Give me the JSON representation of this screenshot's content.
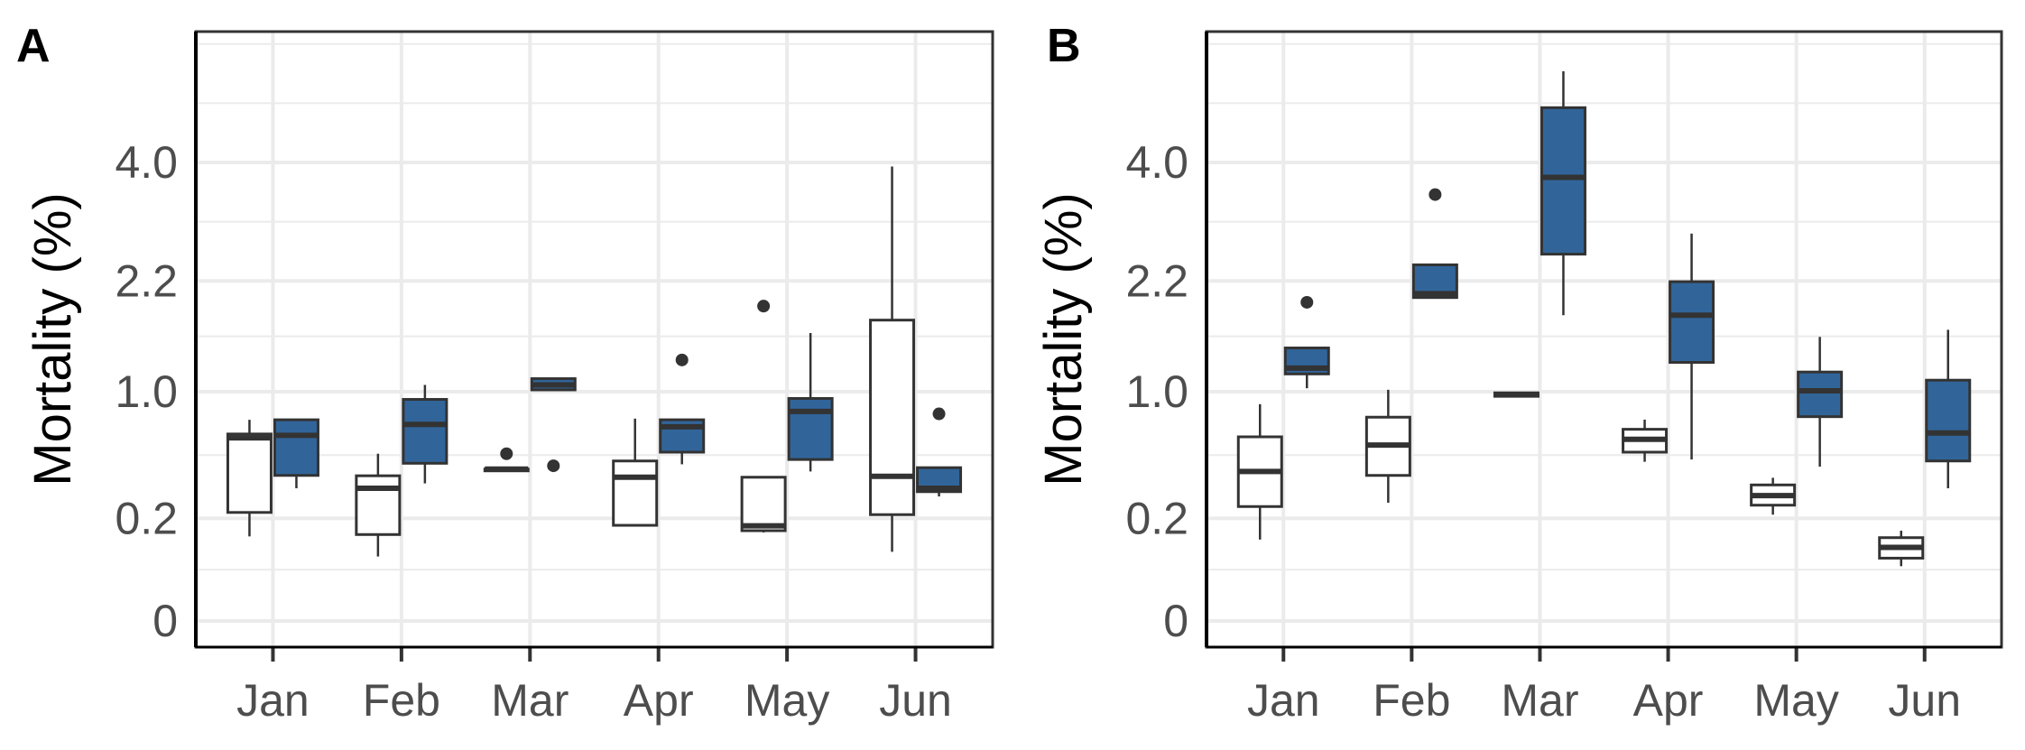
{
  "chart_data": [
    {
      "type": "boxplot",
      "panel_tag": "A",
      "ylabel": "Mortality (%)",
      "xlabel": "",
      "y_scale": "sqrt",
      "ylim": [
        0,
        6.6
      ],
      "y_ticks": [
        "0",
        "0.2",
        "1.0",
        "2.2",
        "4.0"
      ],
      "y_tick_values": [
        0,
        0.2,
        1.0,
        2.2,
        4.0
      ],
      "grid": true,
      "categories": [
        "Jan",
        "Feb",
        "Mar",
        "Apr",
        "May",
        "Jun"
      ],
      "series_fills": [
        "#ffffff",
        "#31659a"
      ],
      "series": [
        {
          "boxes": [
            {
              "min": 0.136,
              "q1": 0.224,
              "median": 0.638,
              "q3": 0.665,
              "max": 0.77,
              "outliers": []
            },
            {
              "min": 0.079,
              "q1": 0.142,
              "median": 0.335,
              "q3": 0.401,
              "max": 0.532,
              "outliers": []
            },
            {
              "min": 0.439,
              "q1": 0.439,
              "median": 0.439,
              "q3": 0.439,
              "max": 0.439,
              "outliers": [
                0.532
              ]
            },
            {
              "min": 0.174,
              "q1": 0.174,
              "median": 0.393,
              "q3": 0.487,
              "max": 0.779,
              "outliers": []
            },
            {
              "min": 0.149,
              "q1": 0.155,
              "median": 0.172,
              "q3": 0.393,
              "max": 0.393,
              "outliers": [
                1.886
              ]
            },
            {
              "min": 0.091,
              "q1": 0.215,
              "median": 0.398,
              "q3": 1.722,
              "max": 3.93,
              "outliers": []
            }
          ]
        },
        {
          "boxes": [
            {
              "min": 0.335,
              "q1": 0.403,
              "median": 0.655,
              "q3": 0.77,
              "max": 0.77,
              "outliers": []
            },
            {
              "min": 0.36,
              "q1": 0.473,
              "median": 0.735,
              "q3": 0.934,
              "max": 1.06,
              "outliers": []
            },
            {
              "min": 1.016,
              "q1": 1.016,
              "median": 1.06,
              "q3": 1.117,
              "max": 1.117,
              "outliers": [
                0.458
              ]
            },
            {
              "min": 0.467,
              "q1": 0.542,
              "median": 0.717,
              "q3": 0.77,
              "max": 0.77,
              "outliers": [
                1.296
              ]
            },
            {
              "min": 0.425,
              "q1": 0.496,
              "median": 0.835,
              "q3": 0.942,
              "max": 1.577,
              "outliers": []
            },
            {
              "min": 0.295,
              "q1": 0.318,
              "median": 0.335,
              "q3": 0.447,
              "max": 0.447,
              "outliers": [
                0.816
              ]
            }
          ]
        }
      ]
    },
    {
      "type": "boxplot",
      "panel_tag": "B",
      "ylabel": "Mortality (%)",
      "xlabel": "",
      "y_scale": "sqrt",
      "ylim": [
        0,
        6.6
      ],
      "y_ticks": [
        "0",
        "0.2",
        "1.0",
        "2.2",
        "4.0"
      ],
      "y_tick_values": [
        0,
        0.2,
        1.0,
        2.2,
        4.0
      ],
      "grid": true,
      "categories": [
        "Jan",
        "Feb",
        "Mar",
        "Apr",
        "May",
        "Jun"
      ],
      "series_fills": [
        "#ffffff",
        "#31659a"
      ],
      "series": [
        {
          "boxes": [
            {
              "min": 0.126,
              "q1": 0.249,
              "median": 0.425,
              "q3": 0.645,
              "max": 0.894,
              "outliers": []
            },
            {
              "min": 0.266,
              "q1": 0.403,
              "median": 0.589,
              "q3": 0.79,
              "max": 1.017,
              "outliers": []
            },
            {
              "min": 0.96,
              "q1": 0.96,
              "median": 0.975,
              "q3": 0.99,
              "max": 0.99,
              "outliers": []
            },
            {
              "min": 0.482,
              "q1": 0.542,
              "median": 0.628,
              "q3": 0.699,
              "max": 0.771,
              "outliers": []
            },
            {
              "min": 0.215,
              "q1": 0.255,
              "median": 0.299,
              "q3": 0.352,
              "max": 0.39,
              "outliers": []
            },
            {
              "min": 0.057,
              "q1": 0.075,
              "median": 0.103,
              "q3": 0.132,
              "max": 0.155,
              "outliers": []
            }
          ]
        },
        {
          "boxes": [
            {
              "min": 1.03,
              "q1": 1.161,
              "median": 1.216,
              "q3": 1.418,
              "max": 1.418,
              "outliers": [
                1.932
              ]
            },
            {
              "min": 1.99,
              "q1": 1.99,
              "median": 2.038,
              "q3": 2.413,
              "max": 2.413,
              "outliers": [
                3.459
              ]
            },
            {
              "min": 1.778,
              "q1": 2.56,
              "median": 3.745,
              "q3": 5.013,
              "max": 5.75,
              "outliers": []
            },
            {
              "min": 0.496,
              "q1": 1.272,
              "median": 1.778,
              "q3": 2.19,
              "max": 2.855,
              "outliers": []
            },
            {
              "min": 0.453,
              "q1": 0.794,
              "median": 1.008,
              "q3": 1.179,
              "max": 1.535,
              "outliers": []
            },
            {
              "min": 0.335,
              "q1": 0.487,
              "median": 0.672,
              "q3": 1.103,
              "max": 1.613,
              "outliers": []
            }
          ]
        }
      ]
    }
  ]
}
